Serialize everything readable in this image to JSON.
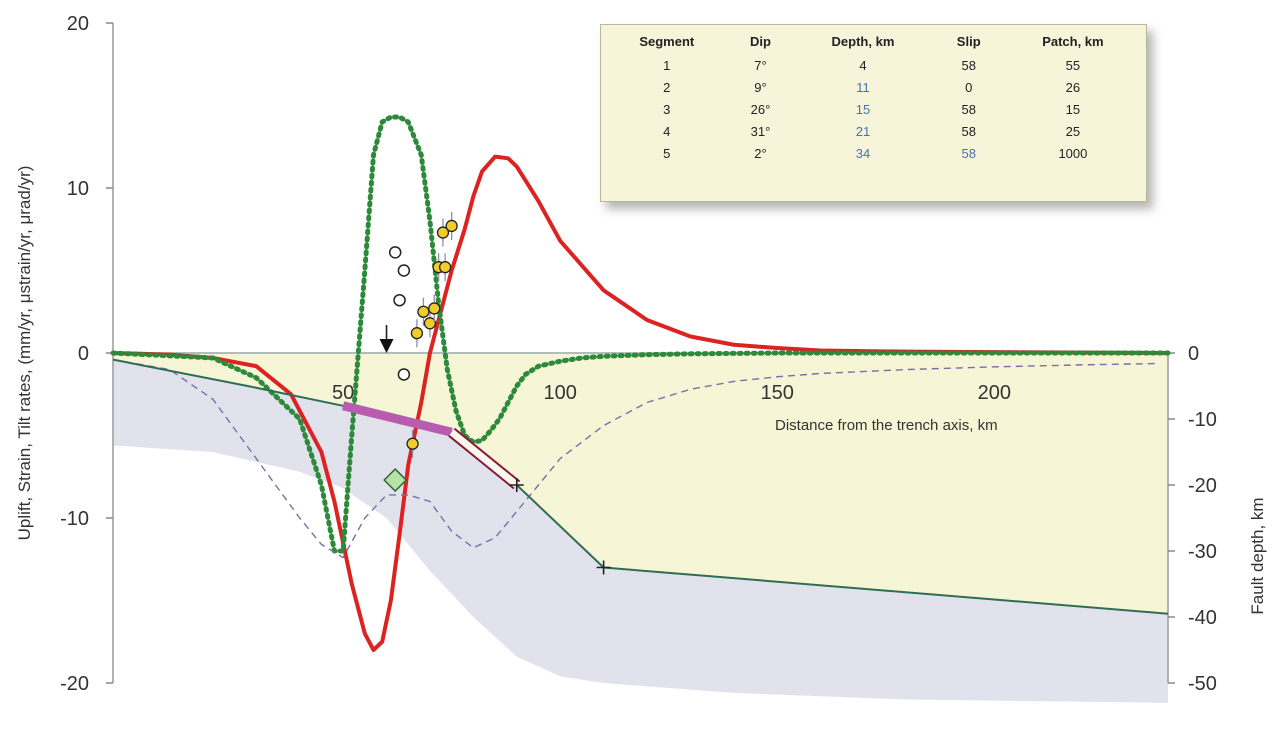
{
  "chart_data": {
    "type": "line",
    "xlabel": "Distance from the trench axis, km",
    "ylabel": "Uplift, Strain, Tilt rates, (mm/yr, μstrain/yr, μrad/yr)",
    "y2label": "Fault depth, km",
    "xlim": [
      -3,
      240
    ],
    "ylim": [
      -20,
      20
    ],
    "y2lim": [
      -50,
      0
    ],
    "x_ticks": [
      "50",
      "100",
      "150",
      "200"
    ],
    "x_tick_values": [
      50,
      100,
      150,
      200
    ],
    "y_ticks": [
      "20",
      "10",
      "0",
      "-10",
      "-20"
    ],
    "y_tick_values": [
      20,
      10,
      0,
      -10,
      -20
    ],
    "y2_ticks": [
      "0",
      "-10",
      "-20",
      "-30",
      "-40",
      "-50"
    ],
    "y2_tick_values": [
      0,
      -10,
      -20,
      -30,
      -40,
      -50
    ],
    "grid": false,
    "series": [
      {
        "style": "solid",
        "color": "#dd2222",
        "axis": "left",
        "x": [
          -3,
          10,
          20,
          30,
          38,
          45,
          48,
          52,
          55,
          57,
          59,
          61,
          63,
          65,
          68,
          70,
          72,
          75,
          78,
          80,
          82,
          85,
          88,
          90,
          95,
          100,
          110,
          120,
          130,
          140,
          150,
          160,
          180,
          200,
          240
        ],
        "y": [
          0,
          -0.1,
          -0.3,
          -0.8,
          -2.5,
          -6,
          -9,
          -14,
          -17,
          -18,
          -17.5,
          -15,
          -11,
          -6.8,
          -3,
          0,
          2,
          5,
          7.5,
          9.5,
          11,
          11.9,
          11.8,
          11.3,
          9.2,
          6.8,
          3.8,
          2,
          1,
          0.5,
          0.3,
          0.15,
          0.08,
          0.05,
          0
        ]
      },
      {
        "style": "dotted",
        "color": "#2d8a3a",
        "axis": "left",
        "x": [
          -3,
          20,
          30,
          40,
          45,
          48,
          50,
          52,
          55,
          57,
          59,
          61,
          63,
          65,
          68,
          70,
          72,
          74,
          76,
          78,
          80,
          82,
          84,
          86,
          88,
          90,
          92,
          95,
          100,
          105,
          110,
          120,
          130,
          150,
          180,
          240
        ],
        "y": [
          0,
          -0.3,
          -1.5,
          -4,
          -8,
          -12,
          -12,
          -5,
          5,
          12,
          14,
          14.3,
          14.3,
          14,
          12,
          8,
          3,
          -1,
          -3.5,
          -5,
          -5.4,
          -5.3,
          -4.7,
          -4,
          -3,
          -2,
          -1.3,
          -0.8,
          -0.5,
          -0.3,
          -0.2,
          -0.1,
          -0.05,
          0,
          0,
          0
        ]
      },
      {
        "style": "dashed",
        "color": "#7a6ea8",
        "axis": "right",
        "x": [
          -3,
          10,
          20,
          30,
          40,
          45,
          50,
          55,
          60,
          65,
          70,
          75,
          80,
          85,
          90,
          95,
          100,
          110,
          120,
          130,
          140,
          150,
          160,
          180,
          200,
          220,
          237
        ],
        "y": [
          -1,
          -2.5,
          -7,
          -16,
          -25,
          -29,
          -31,
          -25,
          -21.5,
          -21.5,
          -22.5,
          -27,
          -29.5,
          -28,
          -24,
          -20,
          -16,
          -11,
          -7.5,
          -5.5,
          -4.3,
          -3.6,
          -3.1,
          -2.5,
          -2.1,
          -1.8,
          -1.6
        ]
      },
      {
        "style": "solid",
        "color": "#2e6e55",
        "axis": "right",
        "label_role": "fault-trace",
        "x": [
          -3,
          28,
          50,
          65,
          75,
          90,
          110,
          240
        ],
        "y": [
          -1,
          -5,
          -8,
          -10,
          -12,
          -20,
          -32.5,
          -39.5
        ]
      }
    ],
    "lower_plate_boundary": {
      "axis": "right",
      "x": [
        -3,
        20,
        40,
        50,
        60,
        70,
        80,
        90,
        100,
        110,
        140,
        180,
        240
      ],
      "y": [
        -14,
        -15,
        -18,
        -20.5,
        -25,
        -33,
        -40,
        -46,
        -49,
        -50,
        -51.5,
        -52.5,
        -53
      ]
    },
    "fault_markers": [
      {
        "x": 90,
        "y": -20,
        "symbol": "plus"
      },
      {
        "x": 110,
        "y": -32.5,
        "symbol": "plus"
      }
    ],
    "slip_patches": [
      {
        "x1": 50,
        "y1": -8,
        "x2": 75,
        "y2": -12,
        "style": "magenta-bar"
      },
      {
        "x1": 75,
        "y1": -12,
        "x2": 90,
        "y2": -20,
        "style": "hollow-bar"
      }
    ],
    "observations_open": [
      {
        "x": 62,
        "y": 6.1
      },
      {
        "x": 64,
        "y": 5
      },
      {
        "x": 63,
        "y": 3.2
      },
      {
        "x": 64,
        "y": -1.3
      }
    ],
    "observations_yellow": [
      {
        "x": 67,
        "y": 1.2
      },
      {
        "x": 68.5,
        "y": 2.5
      },
      {
        "x": 70,
        "y": 1.8
      },
      {
        "x": 71,
        "y": 2.7
      },
      {
        "x": 72,
        "y": 5.2
      },
      {
        "x": 73.5,
        "y": 5.2
      },
      {
        "x": 73,
        "y": 7.3
      },
      {
        "x": 75,
        "y": 7.7
      },
      {
        "x": 66,
        "y": -5.5
      }
    ],
    "diamond_marker": {
      "x": 62,
      "y": -7.7
    },
    "arrow_marker": {
      "x": 60,
      "y": 0
    }
  },
  "table": {
    "headers": [
      "Segment",
      "Dip",
      "Depth, km",
      "Slip",
      "Patch, km"
    ],
    "rows": [
      [
        "1",
        "7°",
        "4",
        "58",
        "55"
      ],
      [
        "2",
        "9°",
        "11",
        "0",
        "26"
      ],
      [
        "3",
        "26°",
        "15",
        "58",
        "15"
      ],
      [
        "4",
        "31°",
        "21",
        "58",
        "25"
      ],
      [
        "5",
        "2°",
        "34",
        "58",
        "1000"
      ]
    ]
  },
  "colors": {
    "uplift_curve": "#dd2222",
    "strain_curve": "#2d8a3a",
    "tilt_curve": "#7a6ea8",
    "upper_plate": "#f6f5d6",
    "lower_plate": "#e1e2ec",
    "fault_line": "#2e6e55",
    "slip_patch": "#b85cb0",
    "observation_fill": "#f1cd2a"
  }
}
